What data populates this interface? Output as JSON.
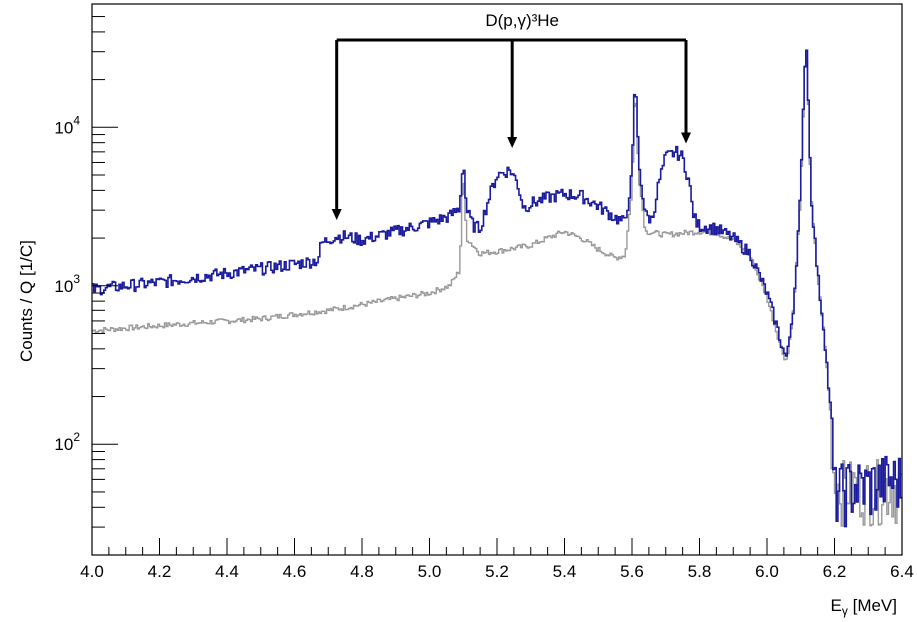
{
  "chart_data": {
    "type": "line",
    "style": "step-histogram",
    "xlabel": "E",
    "xlabel_sub": "γ",
    "xlabel_unit": " [MeV]",
    "ylabel": "Counts / Q [1/C]",
    "xlim": [
      4.0,
      6.4
    ],
    "ylim": [
      20,
      60000
    ],
    "yscale": "log",
    "grid": false,
    "x_ticks": [
      {
        "value": 4.0,
        "label": "4.0"
      },
      {
        "value": 4.2,
        "label": "4.2"
      },
      {
        "value": 4.4,
        "label": "4.4"
      },
      {
        "value": 4.6,
        "label": "4.6"
      },
      {
        "value": 4.8,
        "label": "4.8"
      },
      {
        "value": 5.0,
        "label": "5.0"
      },
      {
        "value": 5.2,
        "label": "5.2"
      },
      {
        "value": 5.4,
        "label": "5.4"
      },
      {
        "value": 5.6,
        "label": "5.6"
      },
      {
        "value": 5.8,
        "label": "5.8"
      },
      {
        "value": 6.0,
        "label": "6.0"
      },
      {
        "value": 6.2,
        "label": "6.2"
      },
      {
        "value": 6.4,
        "label": "6.4"
      }
    ],
    "y_ticks": [
      {
        "value": 100,
        "base": "10",
        "exp": "2"
      },
      {
        "value": 1000,
        "base": "10",
        "exp": "3"
      },
      {
        "value": 10000,
        "base": "10",
        "exp": "4"
      }
    ],
    "series": [
      {
        "color": "#1a1a9c",
        "x": [
          4.0,
          4.1,
          4.2,
          4.3,
          4.4,
          4.5,
          4.6,
          4.67,
          4.68,
          4.72,
          4.75,
          4.8,
          4.9,
          5.0,
          5.06,
          5.09,
          5.1,
          5.11,
          5.13,
          5.15,
          5.18,
          5.2,
          5.24,
          5.26,
          5.28,
          5.3,
          5.35,
          5.4,
          5.45,
          5.5,
          5.55,
          5.58,
          5.6,
          5.61,
          5.62,
          5.64,
          5.66,
          5.68,
          5.7,
          5.73,
          5.75,
          5.77,
          5.78,
          5.79,
          5.8,
          5.85,
          5.9,
          5.95,
          6.0,
          6.03,
          6.05,
          6.06,
          6.08,
          6.1,
          6.115,
          6.12,
          6.13,
          6.15,
          6.17,
          6.19,
          6.2,
          6.25,
          6.3,
          6.35,
          6.4
        ],
        "y": [
          950,
          1000,
          1050,
          1130,
          1200,
          1280,
          1370,
          1450,
          1850,
          2050,
          2050,
          1950,
          2200,
          2500,
          2750,
          3100,
          6500,
          3000,
          2400,
          2300,
          3800,
          5000,
          5400,
          4500,
          3100,
          3300,
          3600,
          3800,
          3700,
          3200,
          2700,
          2500,
          5000,
          22000,
          6000,
          2800,
          2600,
          4500,
          6500,
          7000,
          6500,
          4500,
          3000,
          2500,
          2400,
          2300,
          2000,
          1600,
          900,
          550,
          380,
          350,
          800,
          4000,
          38000,
          25000,
          4000,
          1200,
          500,
          150,
          50,
          55,
          55,
          60,
          60
        ]
      },
      {
        "color": "#999999",
        "x": [
          4.0,
          4.1,
          4.2,
          4.3,
          4.4,
          4.5,
          4.6,
          4.7,
          4.8,
          4.9,
          5.0,
          5.06,
          5.09,
          5.1,
          5.11,
          5.15,
          5.2,
          5.3,
          5.35,
          5.4,
          5.45,
          5.5,
          5.55,
          5.58,
          5.6,
          5.61,
          5.62,
          5.64,
          5.7,
          5.8,
          5.85,
          5.9,
          5.95,
          6.0,
          6.03,
          6.05,
          6.06,
          6.08,
          6.1,
          6.115,
          6.12,
          6.13,
          6.15,
          6.17,
          6.19,
          6.2,
          6.25,
          6.3,
          6.35,
          6.4
        ],
        "y": [
          520,
          540,
          560,
          580,
          600,
          620,
          660,
          700,
          760,
          830,
          900,
          1000,
          1250,
          5500,
          2000,
          1600,
          1650,
          1800,
          2000,
          2200,
          2000,
          1700,
          1500,
          1550,
          4000,
          20000,
          5000,
          2200,
          2100,
          2200,
          2150,
          1950,
          1550,
          850,
          500,
          360,
          340,
          750,
          3800,
          34000,
          22000,
          3800,
          1150,
          480,
          140,
          55,
          55,
          55,
          55,
          55
        ]
      }
    ],
    "annotations": [
      {
        "text": "D(p,γ)³He",
        "arrows_to_x": [
          4.725,
          5.245,
          5.76
        ],
        "arrow_tip_y": [
          2600,
          7400,
          7900
        ]
      }
    ]
  }
}
